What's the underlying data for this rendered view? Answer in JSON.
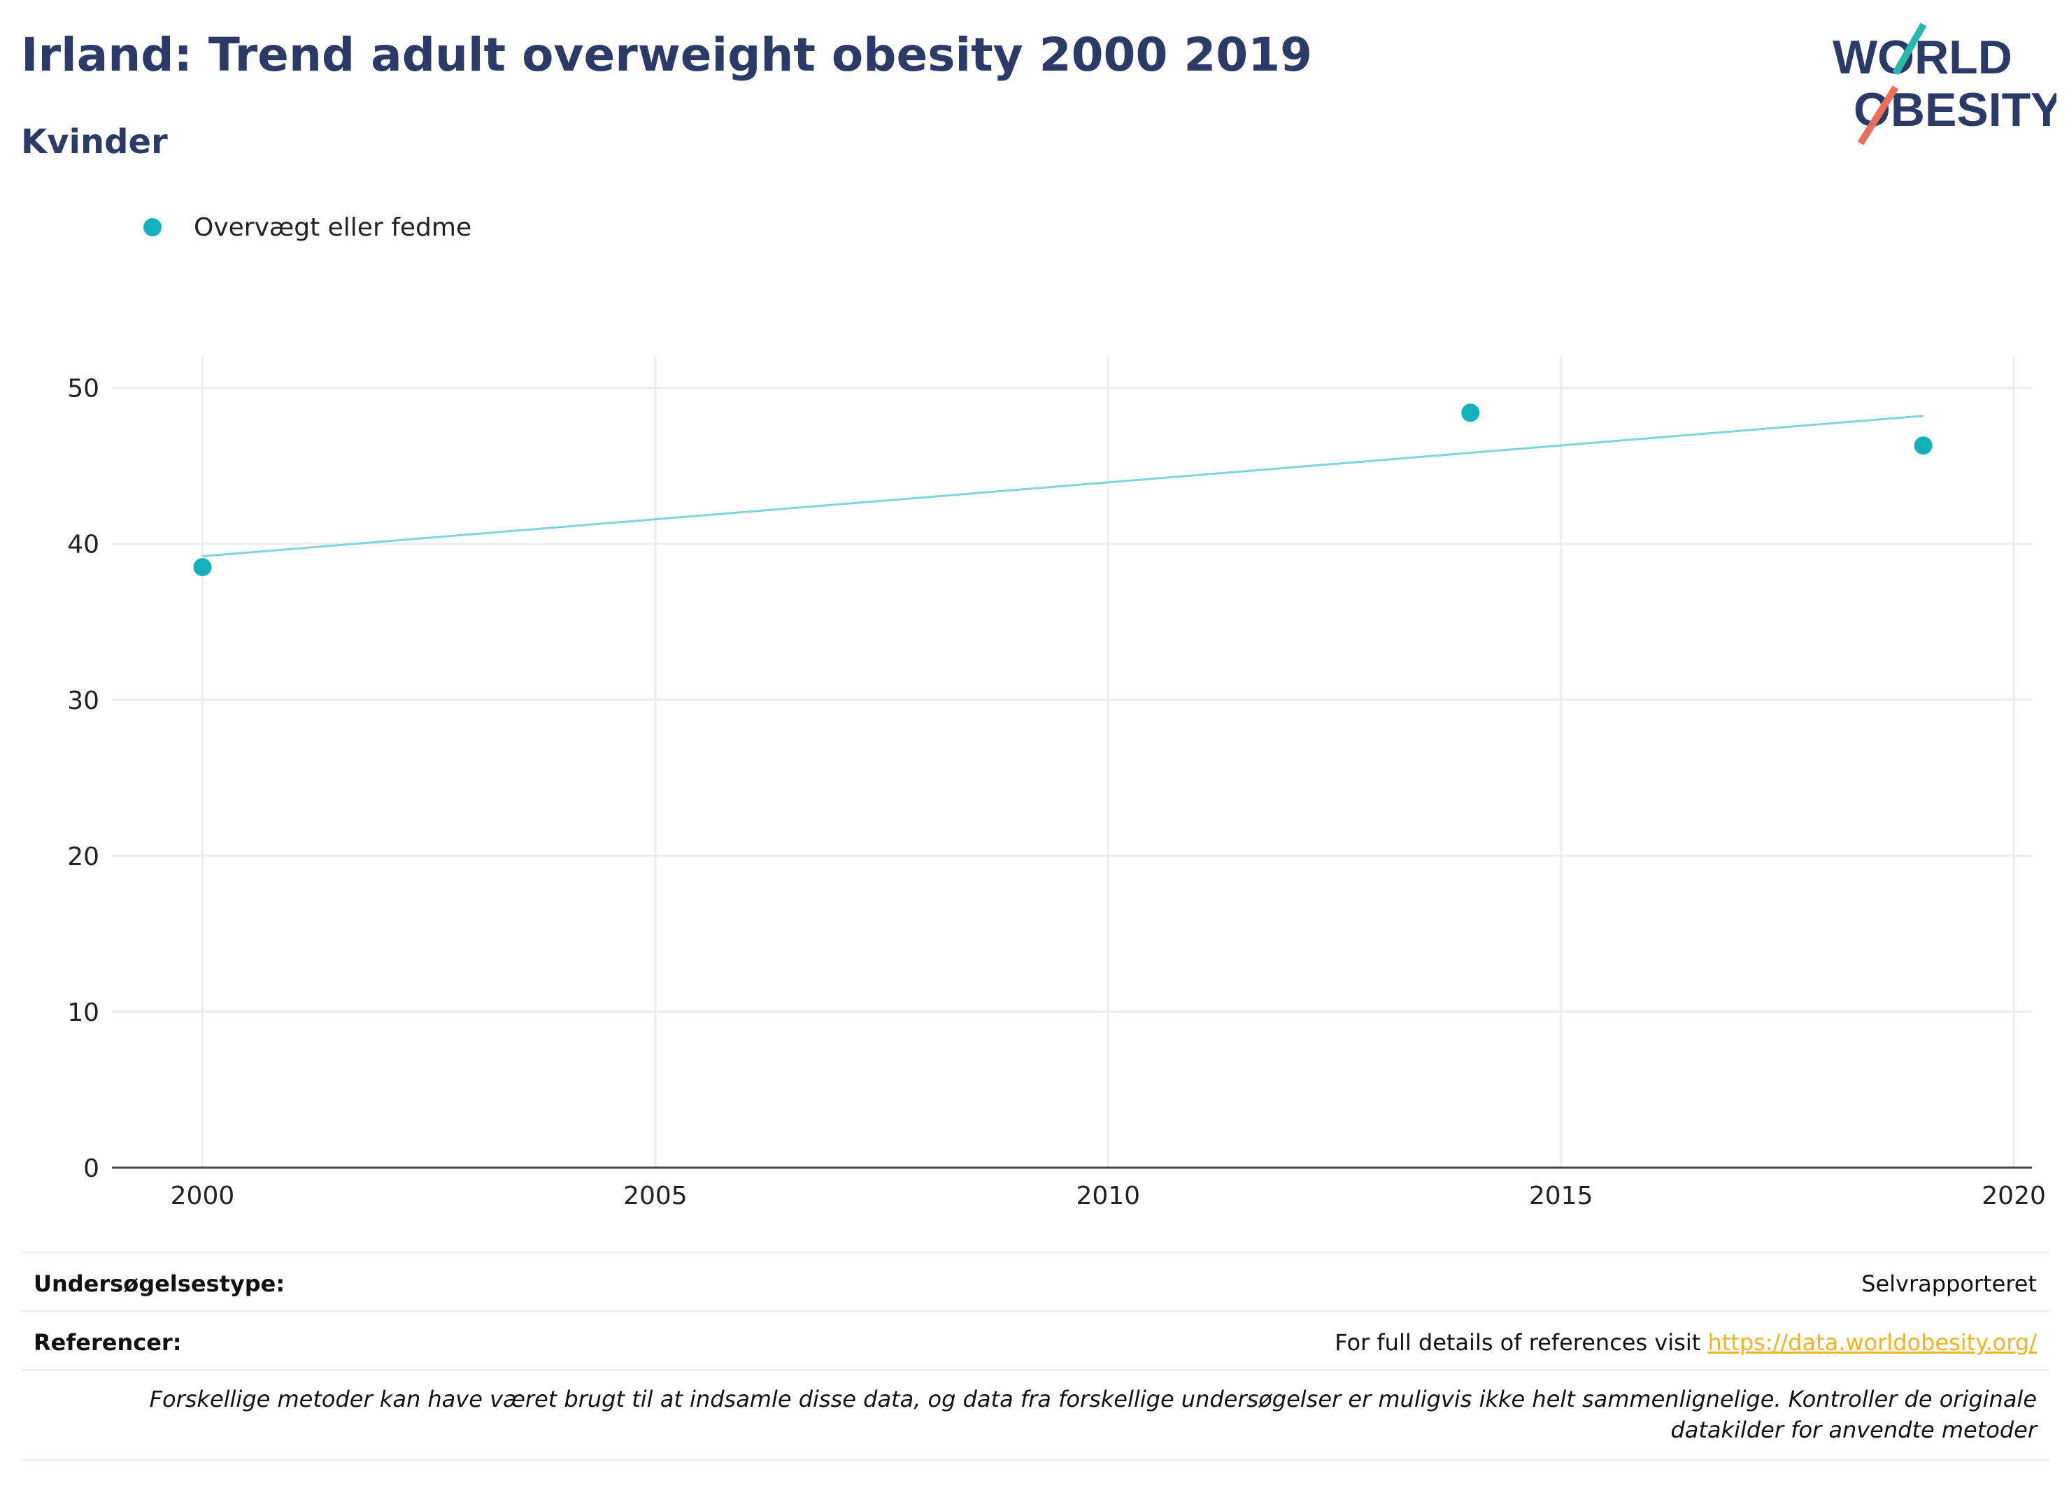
{
  "header": {
    "title": "Irland: Trend adult overweight obesity 2000 2019",
    "subtitle": "Kvinder",
    "logo_text_1": "WORLD",
    "logo_text_2": "OBESITY"
  },
  "legend": {
    "label": "Overvægt eller fedme"
  },
  "colors": {
    "series": "#15b1bb",
    "trend": "#7fd6d9",
    "title": "#2b3a67",
    "link": "#f0b323",
    "logo_teal": "#2ab7b0",
    "logo_red": "#e76f5b"
  },
  "chart_data": {
    "type": "scatter",
    "title": "Irland: Trend adult overweight obesity 2000 2019",
    "subtitle": "Kvinder",
    "xlabel": "",
    "ylabel": "",
    "xlim": [
      1999,
      2020.2
    ],
    "ylim": [
      0,
      52
    ],
    "x_ticks": [
      2000,
      2005,
      2010,
      2015,
      2020
    ],
    "y_ticks": [
      0,
      10,
      20,
      30,
      40,
      50
    ],
    "grid": true,
    "legend_position": "top-left",
    "series": [
      {
        "name": "Overvægt eller fedme",
        "x": [
          2000,
          2014,
          2019
        ],
        "y": [
          38.5,
          48.4,
          46.3
        ]
      }
    ],
    "trendline": {
      "x": [
        2000,
        2019
      ],
      "y": [
        39.2,
        48.2
      ]
    }
  },
  "footer": {
    "survey_label": "Undersøgelsestype:",
    "survey_value": "Selvrapporteret",
    "references_label": "Referencer:",
    "references_text": "For full details of references visit ",
    "references_link": "https://data.worldobesity.org/",
    "note": "Forskellige metoder kan have været brugt til at indsamle disse data, og data fra forskellige undersøgelser er muligvis ikke helt sammenlignelige. Kontroller de originale datakilder for anvendte metoder"
  }
}
